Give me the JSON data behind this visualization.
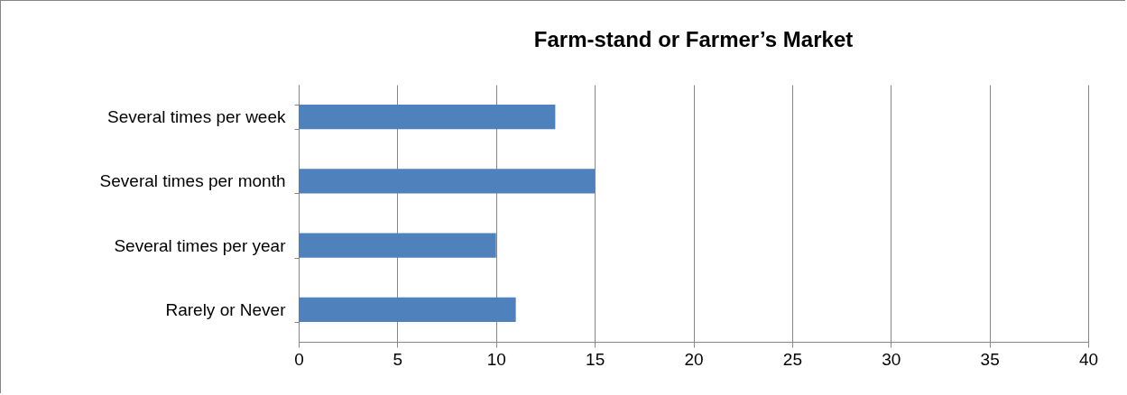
{
  "chart_data": {
    "type": "bar",
    "orientation": "horizontal",
    "title": "Farm-stand or Farmer’s Market",
    "categories": [
      "Several times per week",
      "Several times per month",
      "Several times per year",
      "Rarely or Never"
    ],
    "values": [
      13,
      15,
      10,
      11
    ],
    "color": "#4f81bd",
    "xlim": [
      0,
      40
    ],
    "xticks": [
      0,
      5,
      10,
      15,
      20,
      25,
      30,
      35,
      40
    ],
    "grid": "x"
  }
}
